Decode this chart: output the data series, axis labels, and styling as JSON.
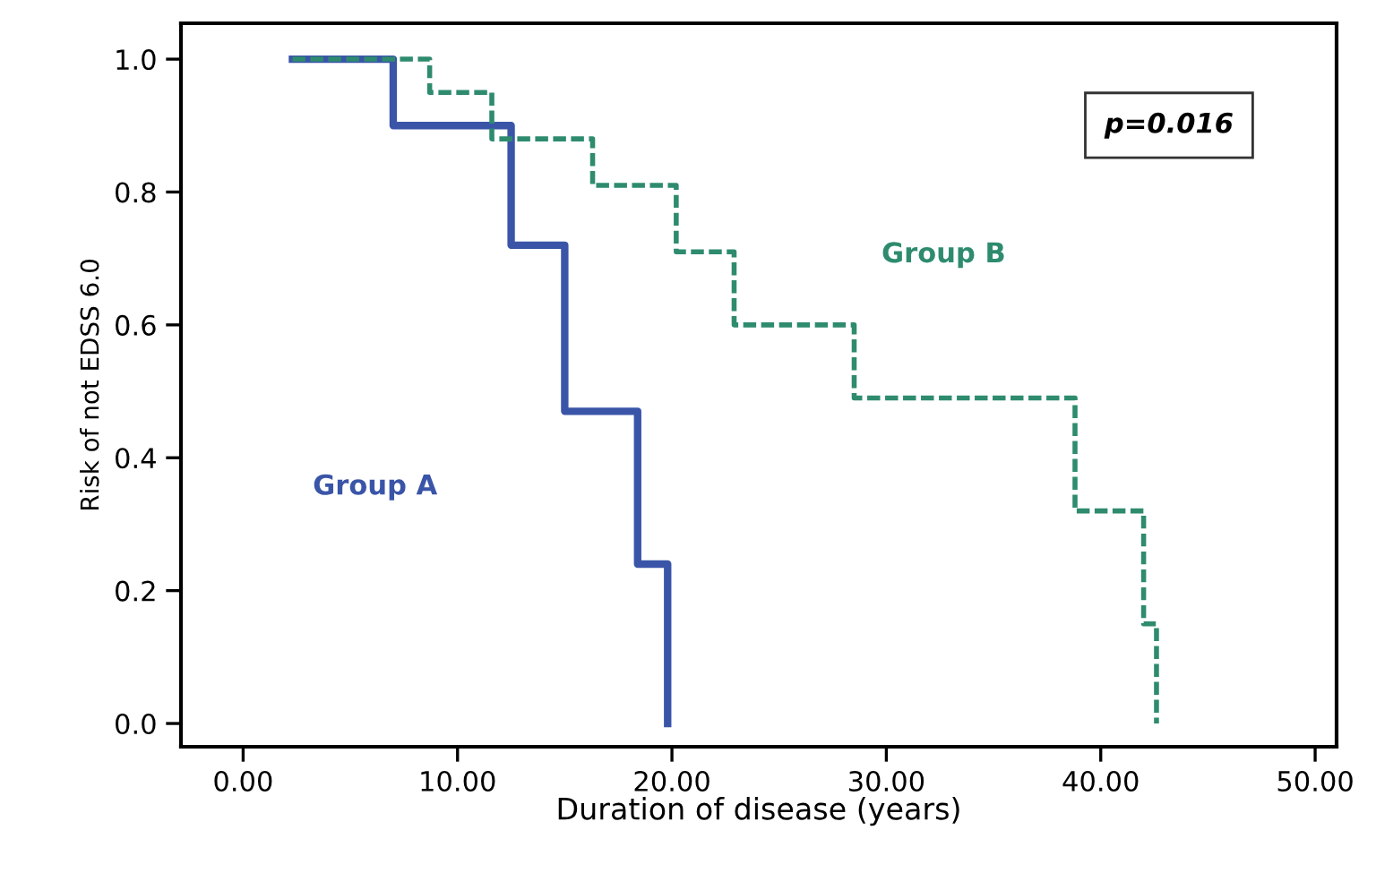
{
  "chart_data": {
    "type": "step",
    "xlabel": "Duration of disease (years)",
    "ylabel": "Risk of not EDSS 6.0",
    "series": [
      {
        "name": "Group A",
        "color": "#3a55a8",
        "line_style": "solid",
        "x": [
          2.3,
          7.0,
          12.5,
          15.0,
          18.4,
          19.8
        ],
        "values": [
          1.0,
          0.9,
          0.72,
          0.47,
          0.24,
          0.0
        ]
      },
      {
        "name": "Group B",
        "color": "#2e8b6e",
        "line_style": "dashed",
        "x": [
          2.3,
          8.7,
          11.6,
          16.3,
          20.2,
          22.9,
          28.5,
          38.8,
          42.0,
          42.6
        ],
        "values": [
          1.0,
          0.95,
          0.88,
          0.81,
          0.71,
          0.6,
          0.49,
          0.32,
          0.15,
          0.0
        ]
      }
    ],
    "annotations": [
      "p=0.016"
    ],
    "xlim": [
      -2.9,
      51
    ],
    "ylim": [
      -0.035,
      1.054
    ],
    "xticks": [
      {
        "value": 0,
        "label": "0.00"
      },
      {
        "value": 10,
        "label": "10.00"
      },
      {
        "value": 20,
        "label": "20.00"
      },
      {
        "value": 30,
        "label": "30.00"
      },
      {
        "value": 40,
        "label": "40.00"
      },
      {
        "value": 50,
        "label": "50.00"
      }
    ],
    "yticks": [
      {
        "value": 0,
        "label": "0.0"
      },
      {
        "value": 0.2,
        "label": "0.2"
      },
      {
        "value": 0.4,
        "label": "0.4"
      },
      {
        "value": 0.6,
        "label": "0.6"
      },
      {
        "value": 0.8,
        "label": "0.8"
      },
      {
        "value": 1.0,
        "label": "1.0"
      }
    ],
    "grid": false,
    "legend": false
  }
}
